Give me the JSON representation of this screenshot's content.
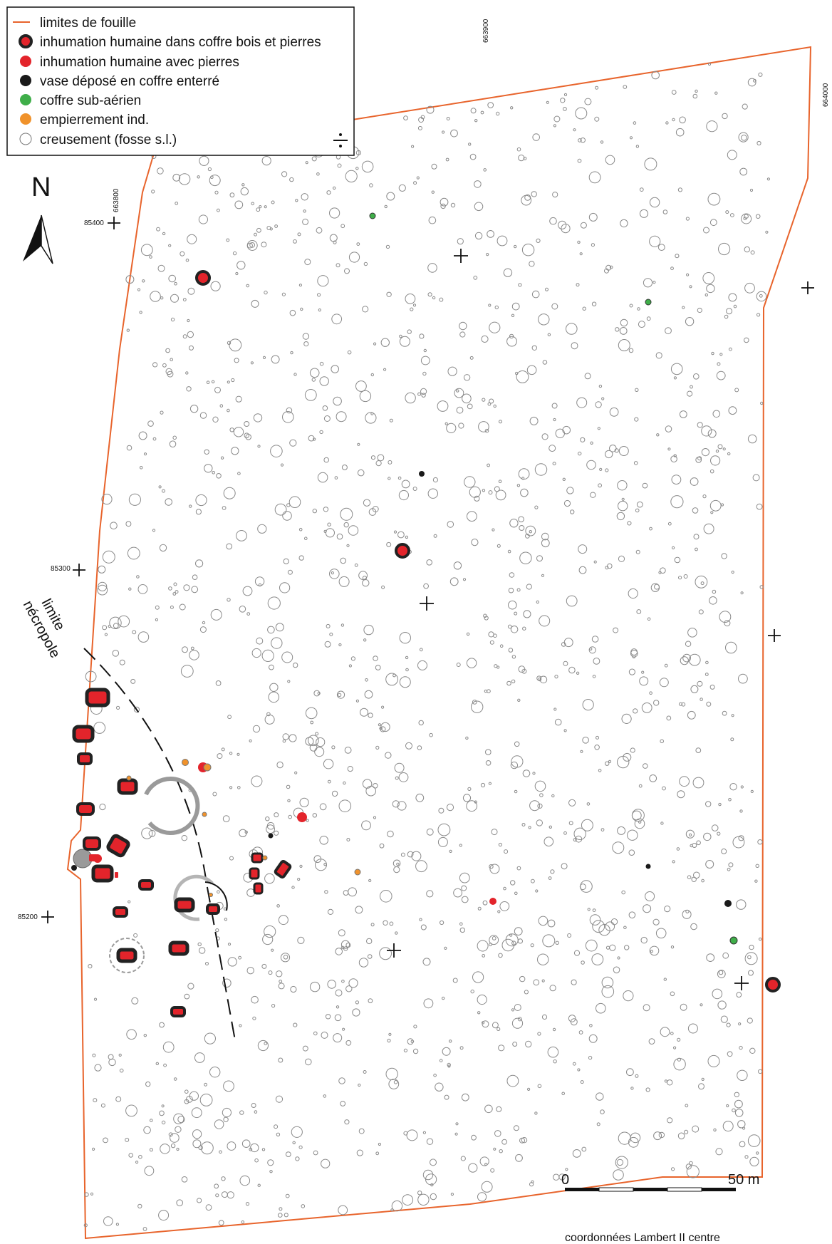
{
  "legend": {
    "items": [
      {
        "key": "limit",
        "label": "limites de fouille"
      },
      {
        "key": "coffre",
        "label": "inhumation humaine dans coffre bois et pierres"
      },
      {
        "key": "pierres",
        "label": "inhumation humaine avec pierres"
      },
      {
        "key": "vase",
        "label": "vase déposé en coffre enterré"
      },
      {
        "key": "subaer",
        "label": "coffre sub-aérien"
      },
      {
        "key": "empier",
        "label": "empierrement ind."
      },
      {
        "key": "creus",
        "label": "creusement (fosse s.l.)"
      }
    ],
    "colors": {
      "limit": "#e8642c",
      "red": "#e3242b",
      "black": "#1a1a1a",
      "green": "#3fae49",
      "orange": "#f0922b"
    }
  },
  "north_label": "N",
  "grid_labels": {
    "x_663800": "663800",
    "x_663900": "663900",
    "x_664000": "664000",
    "y_85400": "85400",
    "y_85300": "85300",
    "y_85200": "85200"
  },
  "necropole_label": {
    "line1": "limite",
    "line2": "nécropole"
  },
  "scale_bar": {
    "start": "0",
    "end": "50 m",
    "caption": "coordonnées Lambert II centre"
  }
}
